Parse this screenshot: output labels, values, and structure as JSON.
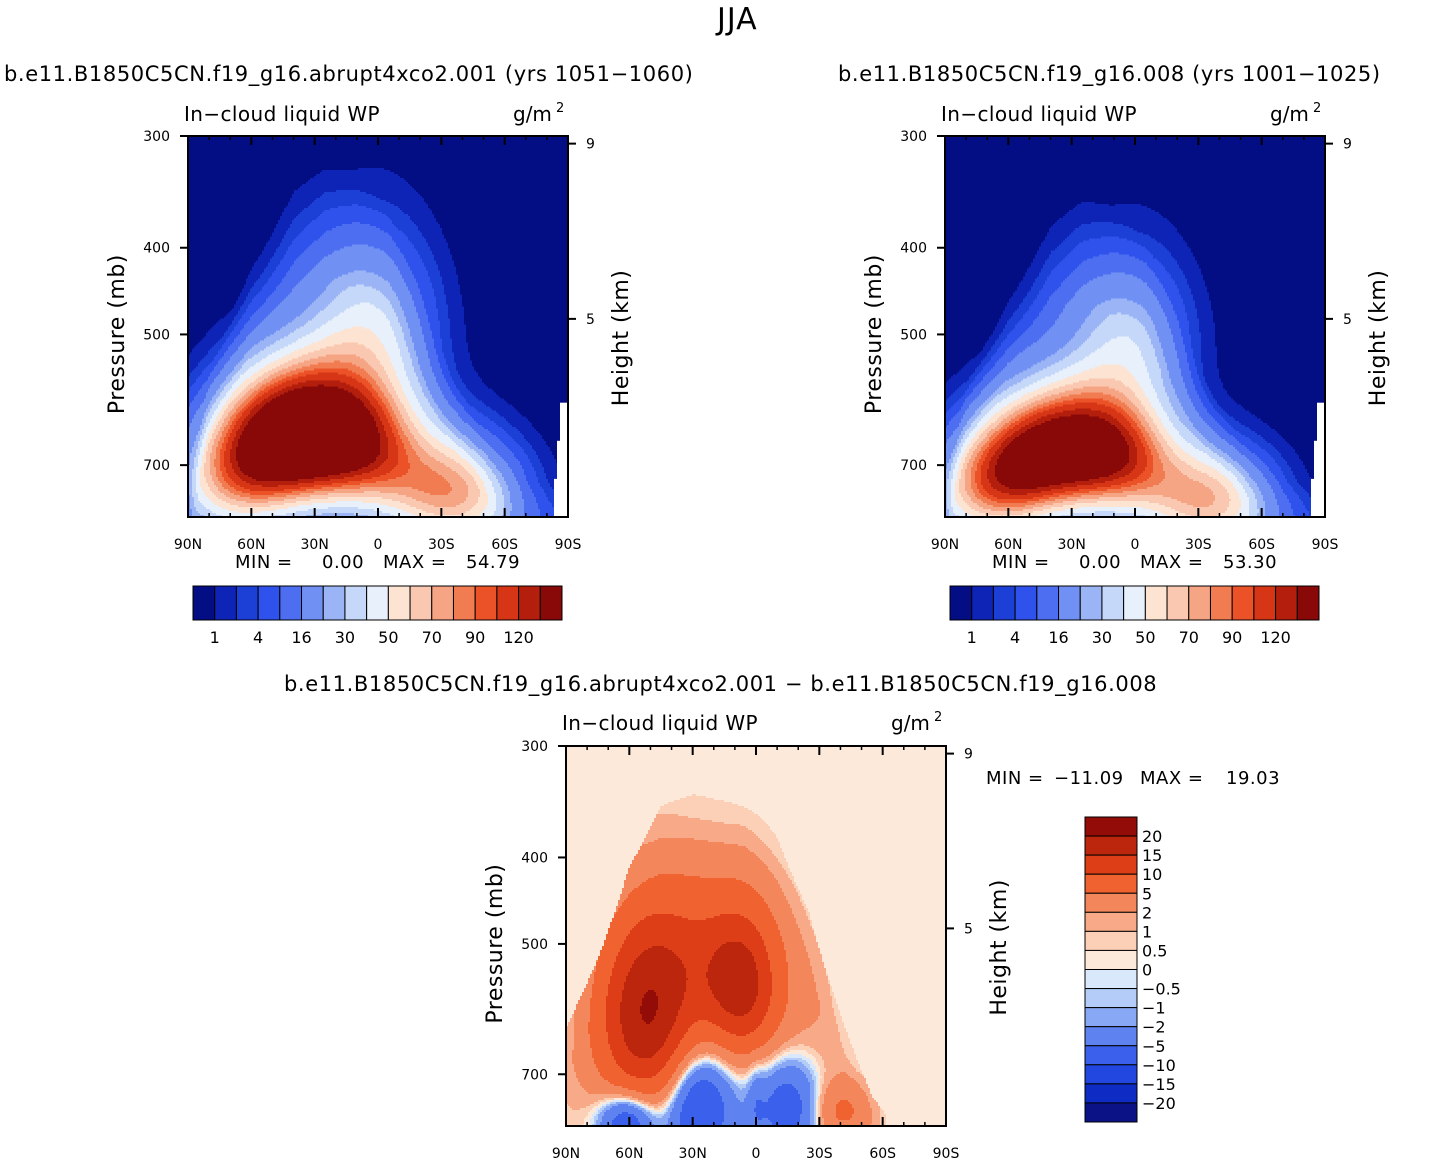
{
  "figure": {
    "title": "JJA",
    "diff_title": "b.e11.B1850C5CN.f19_g16.abrupt4xco2.001 − b.e11.B1850C5CN.f19_g16.008"
  },
  "colors": {
    "panel_scale": [
      "#040e84",
      "#0d24b7",
      "#1c3fd6",
      "#3052ec",
      "#4d6ef0",
      "#7091f3",
      "#9ab4f6",
      "#c5d8f9",
      "#e8f1fb",
      "#fde3d2",
      "#fac7b0",
      "#f6a584",
      "#f27c52",
      "#ec5228",
      "#d63516",
      "#b31f0c",
      "#880907"
    ],
    "diff_scale": [
      "#0a1286",
      "#0e2bc4",
      "#2246e0",
      "#3a60ec",
      "#5e83f1",
      "#88a8f5",
      "#b4ccf8",
      "#dae8fb",
      "#fde9da",
      "#fbd0b6",
      "#f8aa88",
      "#f4865b",
      "#f0622f",
      "#dd3e17",
      "#bc260c",
      "#930c08"
    ]
  },
  "chart_data": [
    {
      "type": "heatmap",
      "name": "panel-abrupt4xco2",
      "case_label": "b.e11.B1850C5CN.f19_g16.abrupt4xco2.001 (yrs 1051−1060)",
      "field": "In−cloud liquid WP",
      "units": "g/m",
      "units_exp": "2",
      "xlabel": "",
      "ylabel": "Pressure (mb)",
      "right_label": "Height (km)",
      "x_ticks": [
        "90N",
        "60N",
        "30N",
        "0",
        "30S",
        "60S",
        "90S"
      ],
      "x_tick_values": [
        90,
        60,
        30,
        0,
        -30,
        -60,
        -90
      ],
      "xlim": [
        90,
        -90
      ],
      "y_ticks": [
        "300",
        "400",
        "500",
        "700"
      ],
      "y_tick_values": [
        300,
        400,
        500,
        700
      ],
      "ylim": [
        300,
        800
      ],
      "right_ticks": [
        "9",
        "5"
      ],
      "right_tick_values": [
        9,
        5
      ],
      "min_label": "MIN =",
      "min_value": "0.00",
      "max_label": "MAX =",
      "max_value": "54.79",
      "colorbar_labels": [
        "1",
        "4",
        "16",
        "30",
        "50",
        "70",
        "90",
        "120"
      ],
      "centers": [
        {
          "lat": 3,
          "p": 480,
          "amp": 4.5
        },
        {
          "lat": 10,
          "p": 660,
          "amp": 9.5
        },
        {
          "lat": 52,
          "p": 665,
          "amp": 8.6
        },
        {
          "lat": 72,
          "p": 740,
          "amp": 4.8
        },
        {
          "lat": 35,
          "p": 620,
          "amp": 6.1
        },
        {
          "lat": -28,
          "p": 745,
          "amp": 5.0
        },
        {
          "lat": -45,
          "p": 760,
          "amp": 3.8
        }
      ],
      "sx": 22,
      "sp": 80,
      "envelope": {
        "top": [
          [
            90,
            800
          ],
          [
            80,
            620
          ],
          [
            60,
            470
          ],
          [
            40,
            390
          ],
          [
            25,
            380
          ],
          [
            10,
            400
          ],
          [
            -5,
            430
          ],
          [
            -20,
            520
          ],
          [
            -35,
            620
          ],
          [
            -55,
            740
          ],
          [
            -70,
            800
          ]
        ],
        "base": 1.8
      }
    },
    {
      "type": "heatmap",
      "name": "panel-control",
      "case_label": "b.e11.B1850C5CN.f19_g16.008 (yrs 1001−1025)",
      "field": "In−cloud liquid WP",
      "units": "g/m",
      "units_exp": "2",
      "xlabel": "",
      "ylabel": "Pressure (mb)",
      "right_label": "Height (km)",
      "x_ticks": [
        "90N",
        "60N",
        "30N",
        "0",
        "30S",
        "60S",
        "90S"
      ],
      "x_tick_values": [
        90,
        60,
        30,
        0,
        -30,
        -60,
        -90
      ],
      "xlim": [
        90,
        -90
      ],
      "y_ticks": [
        "300",
        "400",
        "500",
        "700"
      ],
      "y_tick_values": [
        300,
        400,
        500,
        700
      ],
      "ylim": [
        300,
        800
      ],
      "right_ticks": [
        "9",
        "5"
      ],
      "right_tick_values": [
        9,
        5
      ],
      "min_label": "MIN =",
      "min_value": "0.00",
      "max_label": "MAX =",
      "max_value": "53.30",
      "colorbar_labels": [
        "1",
        "4",
        "16",
        "30",
        "50",
        "70",
        "90",
        "120"
      ],
      "centers": [
        {
          "lat": 3,
          "p": 500,
          "amp": 4.3
        },
        {
          "lat": 10,
          "p": 680,
          "amp": 9.4
        },
        {
          "lat": 55,
          "p": 700,
          "amp": 8.3
        },
        {
          "lat": 75,
          "p": 760,
          "amp": 4.6
        },
        {
          "lat": 35,
          "p": 650,
          "amp": 5.8
        },
        {
          "lat": -28,
          "p": 760,
          "amp": 4.8
        },
        {
          "lat": -45,
          "p": 775,
          "amp": 3.6
        }
      ],
      "sx": 21,
      "sp": 75,
      "envelope": {
        "top": [
          [
            90,
            800
          ],
          [
            80,
            640
          ],
          [
            60,
            500
          ],
          [
            40,
            420
          ],
          [
            25,
            405
          ],
          [
            10,
            430
          ],
          [
            -5,
            460
          ],
          [
            -20,
            540
          ],
          [
            -35,
            640
          ],
          [
            -55,
            750
          ],
          [
            -70,
            800
          ]
        ],
        "base": 1.8
      }
    },
    {
      "type": "heatmap",
      "name": "panel-difference",
      "field": "In−cloud liquid WP",
      "units": "g/m",
      "units_exp": "2",
      "xlabel": "",
      "ylabel": "Pressure (mb)",
      "right_label": "Height (km)",
      "x_ticks": [
        "90N",
        "60N",
        "30N",
        "0",
        "30S",
        "60S",
        "90S"
      ],
      "x_tick_values": [
        90,
        60,
        30,
        0,
        -30,
        -60,
        -90
      ],
      "xlim": [
        90,
        -90
      ],
      "y_ticks": [
        "300",
        "400",
        "500",
        "700"
      ],
      "y_tick_values": [
        300,
        400,
        500,
        700
      ],
      "ylim": [
        300,
        800
      ],
      "right_ticks": [
        "9",
        "5"
      ],
      "right_tick_values": [
        9,
        5
      ],
      "min_label": "MIN =",
      "min_value": "−11.09",
      "max_label": "MAX =",
      "max_value": "19.03",
      "colorbar_labels": [
        "20",
        "15",
        "10",
        "5",
        "2",
        "1",
        "0.5",
        "0",
        "−0.5",
        "−1",
        "−2",
        "−5",
        "−10",
        "−15",
        "−20"
      ],
      "diff_levels": [
        -20,
        -15,
        -10,
        -5,
        -2,
        -1,
        -0.5,
        0,
        0.5,
        1,
        2,
        5,
        10,
        15,
        20
      ],
      "pos_centers": [
        {
          "lat": 52,
          "p": 610,
          "amp": 18.0,
          "sx": 16,
          "sp": 95
        },
        {
          "lat": 7,
          "p": 560,
          "amp": 14.5,
          "sx": 12,
          "sp": 70
        },
        {
          "lat": 30,
          "p": 510,
          "amp": 7.0,
          "sx": 22,
          "sp": 70
        },
        {
          "lat": -20,
          "p": 640,
          "amp": 1.6,
          "sx": 18,
          "sp": 120
        },
        {
          "lat": -40,
          "p": 770,
          "amp": 5.0,
          "sx": 10,
          "sp": 40
        }
      ],
      "neg_centers": [
        {
          "lat": 27,
          "p": 760,
          "amp": 11.0,
          "sx": 11,
          "sp": 75
        },
        {
          "lat": 61,
          "p": 790,
          "amp": 10.0,
          "sx": 9,
          "sp": 40
        },
        {
          "lat": -15,
          "p": 760,
          "amp": 9.0,
          "sx": 11,
          "sp": 65
        },
        {
          "lat": 0,
          "p": 760,
          "amp": 2.5,
          "sx": 3,
          "sp": 60
        }
      ],
      "envelope": {
        "top": [
          [
            90,
            640
          ],
          [
            75,
            540
          ],
          [
            60,
            430
          ],
          [
            45,
            370
          ],
          [
            30,
            360
          ],
          [
            15,
            365
          ],
          [
            5,
            360
          ],
          [
            -10,
            400
          ],
          [
            -25,
            480
          ],
          [
            -40,
            620
          ],
          [
            -55,
            760
          ],
          [
            -62,
            800
          ]
        ]
      }
    }
  ]
}
